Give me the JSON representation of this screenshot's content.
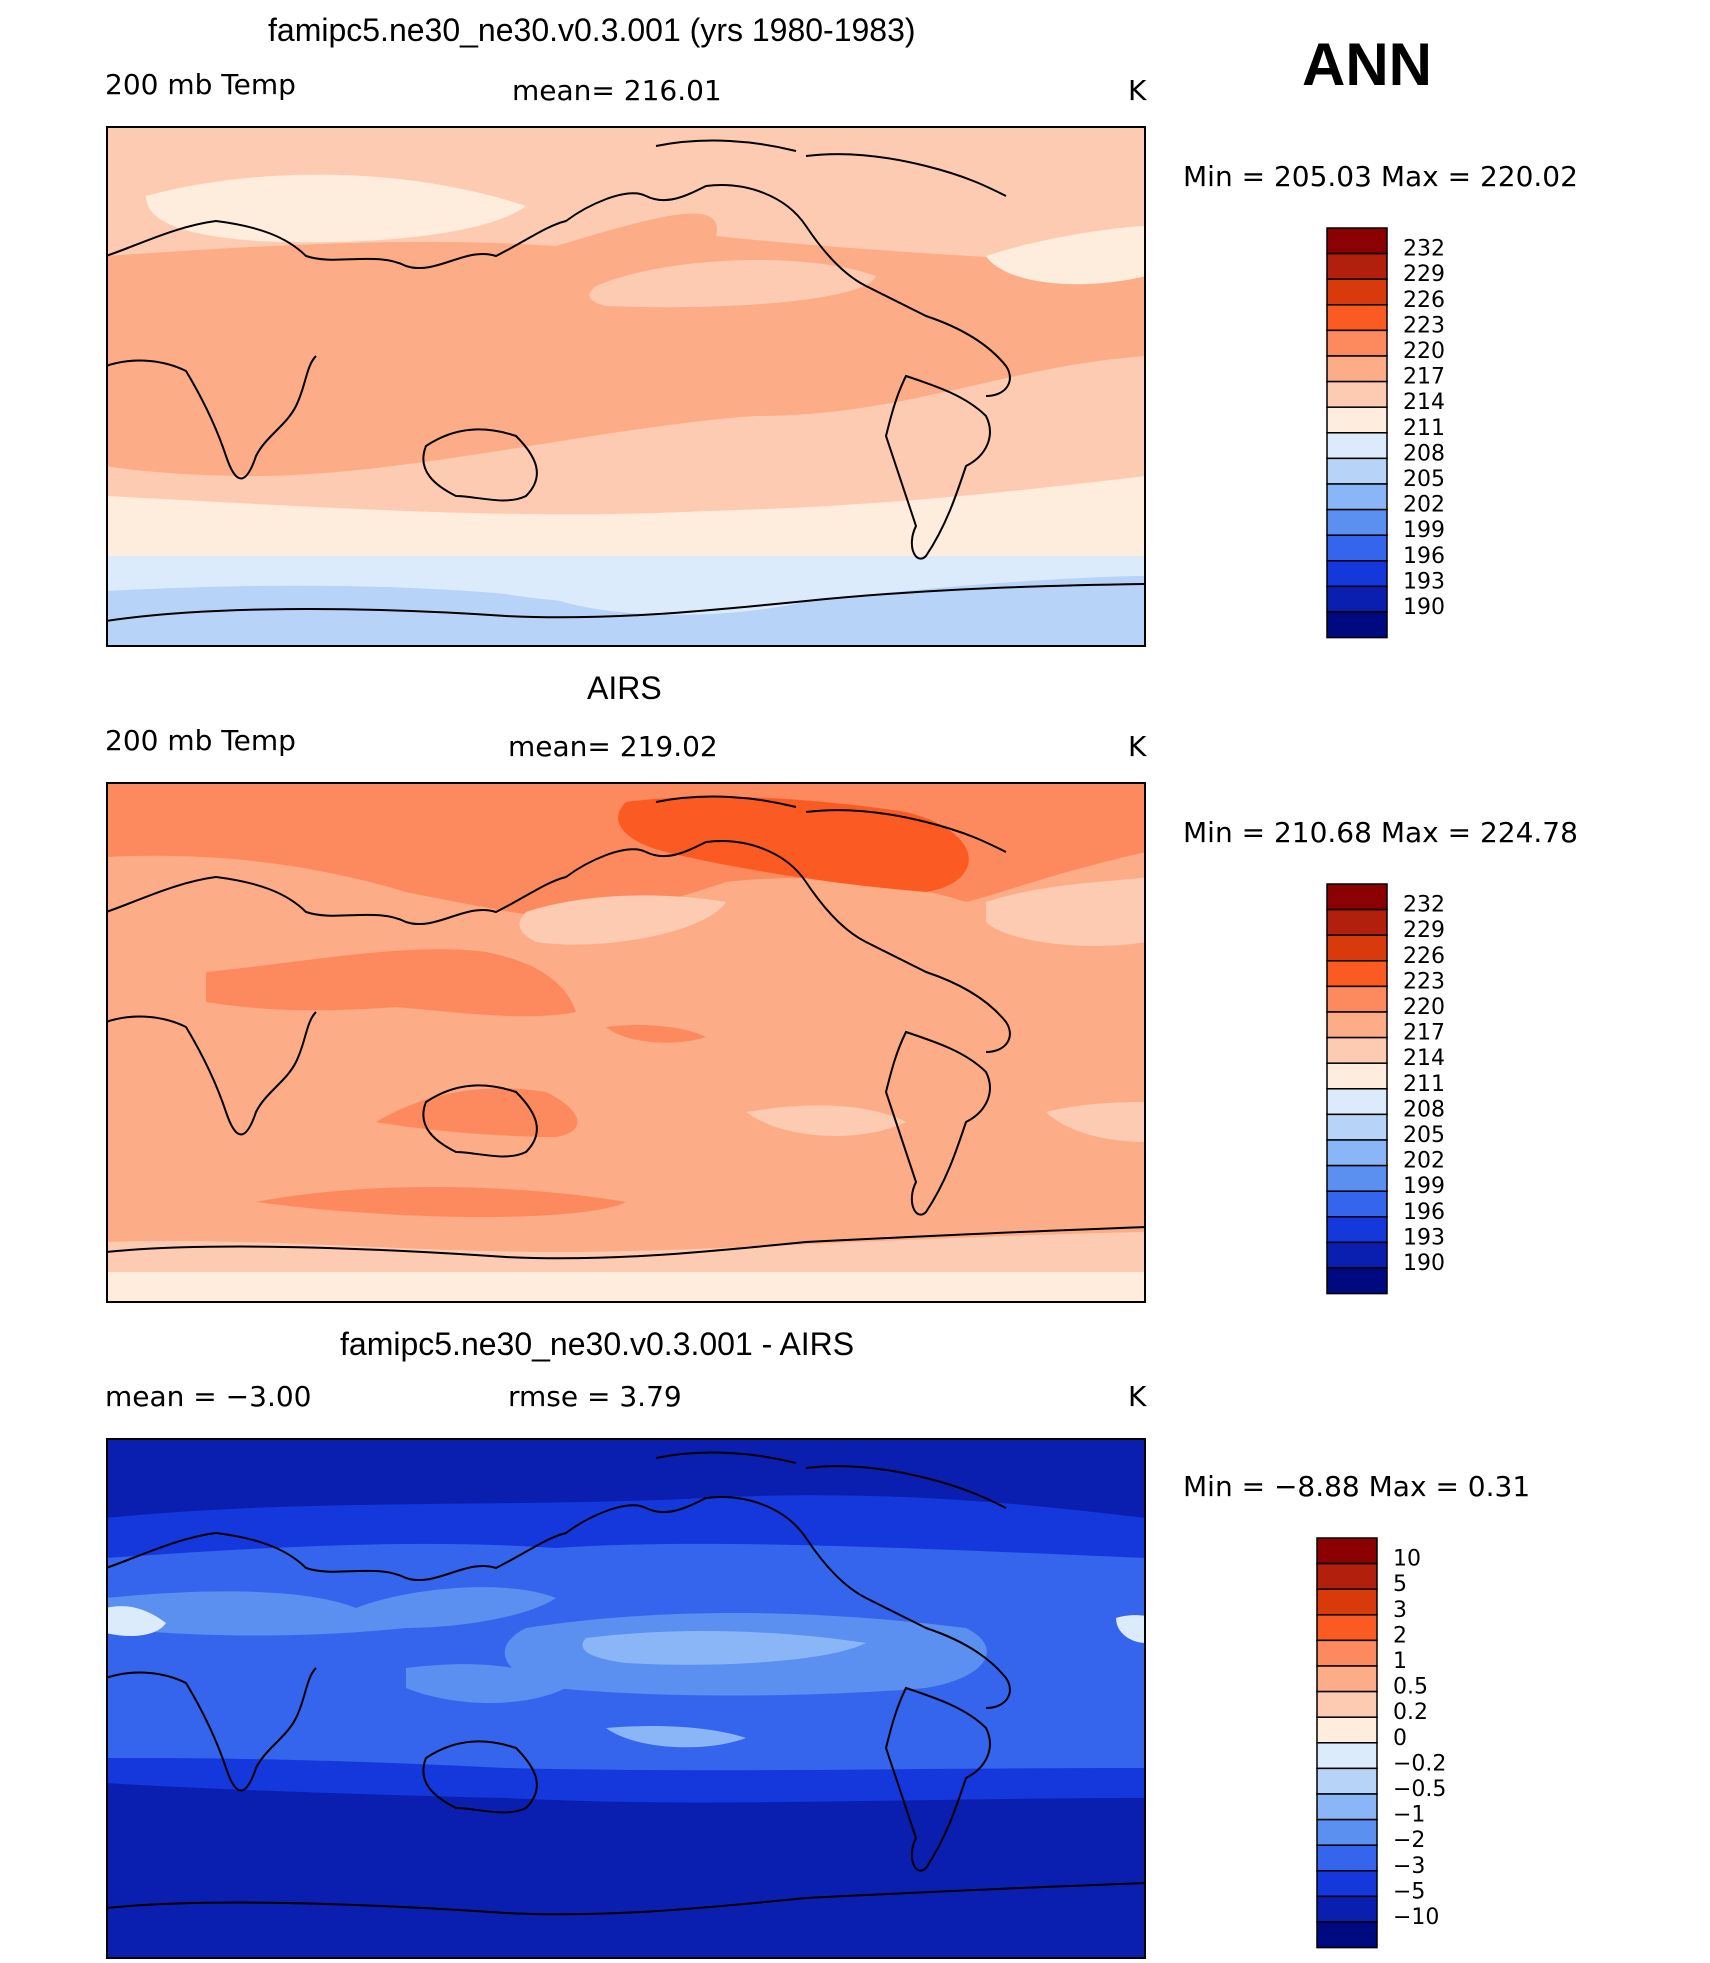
{
  "season": "ANN",
  "panels": [
    {
      "title": "famipc5.ne30_ne30.v0.3.001 (yrs 1980-1983)",
      "left": "200 mb Temp",
      "center": "mean= 216.01",
      "units": "K",
      "range": "Min  =  205.03  Max  =  220.02"
    },
    {
      "title": "AIRS",
      "left": "200 mb Temp",
      "center": "mean= 219.02",
      "units": "K",
      "range": "Min  =  210.68  Max  =  224.78"
    },
    {
      "title": "famipc5.ne30_ne30.v0.3.001 - AIRS",
      "left": "mean  =    −3.00",
      "center": "rmse  =     3.79",
      "units": "K",
      "range": "Min  =    −8.88  Max  =     0.31"
    }
  ],
  "colorbars": {
    "temp": {
      "labels": [
        "232",
        "229",
        "226",
        "223",
        "220",
        "217",
        "214",
        "211",
        "208",
        "205",
        "202",
        "199",
        "196",
        "193",
        "190"
      ],
      "colors": [
        "#8b0000",
        "#b2200d",
        "#d83a0b",
        "#fb5a22",
        "#fc8a5e",
        "#fcac86",
        "#fdcbb2",
        "#feecdd",
        "#dcebfb",
        "#b8d3f8",
        "#8ab5f6",
        "#5b8ff0",
        "#3565ec",
        "#1438dc",
        "#0a1fb0",
        "#000a80"
      ]
    },
    "diff": {
      "labels": [
        "10",
        "5",
        "3",
        "2",
        "1",
        "0.5",
        "0.2",
        "0",
        "−0.2",
        "−0.5",
        "−1",
        "−2",
        "−3",
        "−5",
        "−10"
      ],
      "colors": [
        "#8b0000",
        "#b2200d",
        "#d83a0b",
        "#fb5a22",
        "#fc8a5e",
        "#fcac86",
        "#fdcbb2",
        "#feecdd",
        "#dcebfb",
        "#b8d3f8",
        "#8ab5f6",
        "#5b8ff0",
        "#3565ec",
        "#1438dc",
        "#0a1fb0",
        "#000a80"
      ]
    }
  }
}
